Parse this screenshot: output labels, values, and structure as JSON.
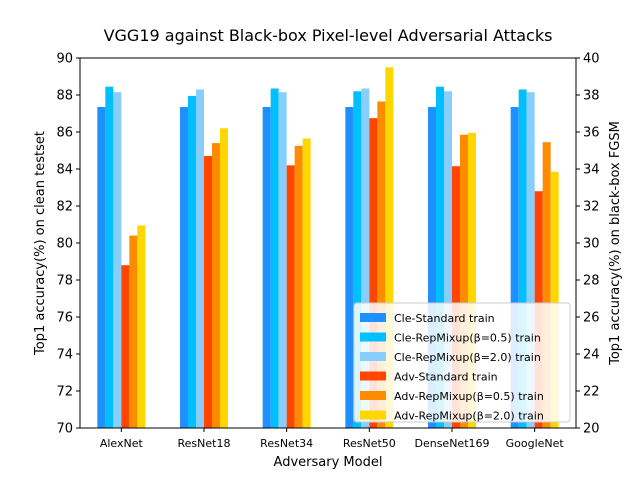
{
  "chart_data": {
    "type": "bar",
    "title": "VGG19 against Black-box Pixel-level Adversarial Attacks",
    "xlabel": "Adversary Model",
    "ylabel_left": "Top1 accuracy(%) on clean testset",
    "ylabel_right": "Top1 accuracy(%) on black-box FGSM",
    "ylim_left": [
      70,
      90
    ],
    "ylim_right": [
      20,
      40
    ],
    "yticks_left": [
      70,
      72,
      74,
      76,
      78,
      80,
      82,
      84,
      86,
      88,
      90
    ],
    "yticks_right": [
      20,
      22,
      24,
      26,
      28,
      30,
      32,
      34,
      36,
      38,
      40
    ],
    "categories": [
      "AlexNet",
      "ResNet18",
      "ResNet34",
      "ResNet50",
      "DenseNet169",
      "GoogleNet"
    ],
    "legend_position": "lower-right",
    "grid": false,
    "series": [
      {
        "name": "Cle-Standard train",
        "axis": "left",
        "color": "#1e90ff",
        "values": [
          87.35,
          87.35,
          87.35,
          87.35,
          87.35,
          87.35
        ]
      },
      {
        "name": "Cle-RepMixup(β=0.5) train",
        "axis": "left",
        "color": "#00bfff",
        "values": [
          88.45,
          87.95,
          88.35,
          88.2,
          88.45,
          88.3
        ]
      },
      {
        "name": "Cle-RepMixup(β=2.0) train",
        "axis": "left",
        "color": "#87cefa",
        "values": [
          88.15,
          88.3,
          88.15,
          88.35,
          88.2,
          88.15
        ]
      },
      {
        "name": "Adv-Standard train",
        "axis": "right",
        "color": "#ff4500",
        "values": [
          28.8,
          34.7,
          34.2,
          36.75,
          34.15,
          32.8
        ]
      },
      {
        "name": "Adv-RepMixup(β=0.5) train",
        "axis": "right",
        "color": "#ff8c00",
        "values": [
          30.4,
          35.4,
          35.25,
          37.65,
          35.85,
          35.45
        ]
      },
      {
        "name": "Adv-RepMixup(β=2.0) train",
        "axis": "right",
        "color": "#ffd700",
        "values": [
          30.95,
          36.2,
          35.65,
          39.5,
          35.95,
          33.85
        ]
      }
    ]
  }
}
